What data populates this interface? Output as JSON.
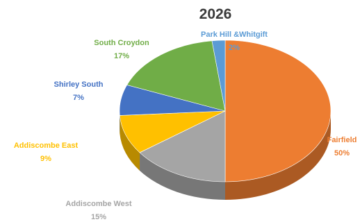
{
  "chart_data": {
    "type": "pie",
    "title": "2026",
    "slices": [
      {
        "label": "Fairfield",
        "percent_label": "50%",
        "value": 50,
        "color": "#ED7D31"
      },
      {
        "label": "Addiscombe West",
        "percent_label": "15%",
        "value": 15,
        "color": "#A5A5A5"
      },
      {
        "label": "Addiscombe East",
        "percent_label": "9%",
        "value": 9,
        "color": "#FFC000"
      },
      {
        "label": "Shirley South",
        "percent_label": "7%",
        "value": 7,
        "color": "#4472C4"
      },
      {
        "label": "South Croydon",
        "percent_label": "17%",
        "value": 17,
        "color": "#70AD47"
      },
      {
        "label": "Park Hill &Whitgift",
        "percent_label": "2%",
        "value": 2,
        "color": "#5B9BD5"
      }
    ],
    "label_colors": {
      "Fairfield": "#ED7D31",
      "Addiscombe West": "#A5A5A5",
      "Addiscombe East": "#FFC000",
      "Shirley South": "#4472C4",
      "South Croydon": "#70AD47",
      "Park Hill &Whitgift": "#5B9BD5"
    },
    "style": "3d-pie",
    "legend": "none"
  }
}
